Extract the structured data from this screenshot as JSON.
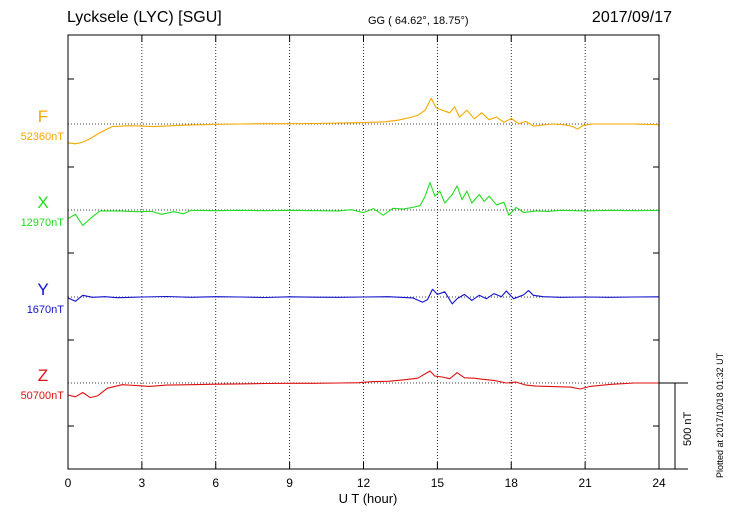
{
  "header": {
    "station": "Lycksele (LYC)  [SGU]",
    "coords": "GG ( 64.62°,  18.75°)",
    "date": "2017/09/17"
  },
  "footer": {
    "plotted": "Plotted at 2017/10/18 01:32 UT"
  },
  "colors": {
    "F": "#f5a800",
    "X": "#22dd22",
    "Y": "#1111cc",
    "Z": "#dd1111"
  },
  "chart_data": {
    "type": "line",
    "xlabel": "U T (hour)",
    "xlim": [
      0,
      24
    ],
    "xticks": [
      0,
      3,
      6,
      9,
      12,
      15,
      18,
      21,
      24
    ],
    "scale_bar": "500 nT",
    "grid": true,
    "series": [
      {
        "name": "F",
        "baseline_label": "52360nT",
        "baseline": 52360,
        "points": [
          [
            0,
            52250
          ],
          [
            0.3,
            52245
          ],
          [
            0.6,
            52255
          ],
          [
            0.9,
            52275
          ],
          [
            1.3,
            52310
          ],
          [
            1.8,
            52345
          ],
          [
            2.5,
            52350
          ],
          [
            3.5,
            52345
          ],
          [
            4.5,
            52352
          ],
          [
            5,
            52355
          ],
          [
            6,
            52358
          ],
          [
            7,
            52360
          ],
          [
            8,
            52362
          ],
          [
            9,
            52362
          ],
          [
            10,
            52363
          ],
          [
            11,
            52365
          ],
          [
            12,
            52368
          ],
          [
            12.8,
            52372
          ],
          [
            13.4,
            52382
          ],
          [
            13.9,
            52398
          ],
          [
            14.2,
            52410
          ],
          [
            14.5,
            52440
          ],
          [
            14.75,
            52510
          ],
          [
            14.95,
            52455
          ],
          [
            15.2,
            52440
          ],
          [
            15.5,
            52425
          ],
          [
            15.7,
            52460
          ],
          [
            15.9,
            52400
          ],
          [
            16.2,
            52440
          ],
          [
            16.5,
            52390
          ],
          [
            16.8,
            52425
          ],
          [
            17.1,
            52385
          ],
          [
            17.4,
            52400
          ],
          [
            17.7,
            52370
          ],
          [
            18,
            52392
          ],
          [
            18.3,
            52362
          ],
          [
            18.6,
            52375
          ],
          [
            18.9,
            52348
          ],
          [
            19.3,
            52354
          ],
          [
            19.7,
            52360
          ],
          [
            20.2,
            52355
          ],
          [
            20.5,
            52345
          ],
          [
            20.7,
            52330
          ],
          [
            20.9,
            52352
          ],
          [
            21.3,
            52360
          ],
          [
            22,
            52360
          ],
          [
            23,
            52360
          ],
          [
            24,
            52356
          ]
        ]
      },
      {
        "name": "X",
        "baseline_label": "12970nT",
        "baseline": 12970,
        "points": [
          [
            0,
            12920
          ],
          [
            0.3,
            12945
          ],
          [
            0.6,
            12880
          ],
          [
            0.9,
            12920
          ],
          [
            1.3,
            12965
          ],
          [
            2,
            12965
          ],
          [
            2.8,
            12960
          ],
          [
            3.4,
            12962
          ],
          [
            3.8,
            12945
          ],
          [
            4.3,
            12960
          ],
          [
            4.7,
            12948
          ],
          [
            5,
            12968
          ],
          [
            6,
            12966
          ],
          [
            7,
            12968
          ],
          [
            8,
            12966
          ],
          [
            9,
            12968
          ],
          [
            10,
            12966
          ],
          [
            11,
            12965
          ],
          [
            11.5,
            12972
          ],
          [
            12,
            12955
          ],
          [
            12.4,
            12978
          ],
          [
            12.8,
            12940
          ],
          [
            13.2,
            12980
          ],
          [
            13.6,
            12975
          ],
          [
            14,
            12985
          ],
          [
            14.3,
            12995
          ],
          [
            14.5,
            13050
          ],
          [
            14.7,
            13130
          ],
          [
            14.9,
            13050
          ],
          [
            15.1,
            13080
          ],
          [
            15.3,
            13010
          ],
          [
            15.6,
            13060
          ],
          [
            15.8,
            13110
          ],
          [
            16,
            13030
          ],
          [
            16.2,
            13080
          ],
          [
            16.4,
            13010
          ],
          [
            16.7,
            13060
          ],
          [
            16.9,
            13020
          ],
          [
            17.1,
            13050
          ],
          [
            17.4,
            13000
          ],
          [
            17.7,
            13015
          ],
          [
            17.9,
            12940
          ],
          [
            18.2,
            12985
          ],
          [
            18.5,
            12955
          ],
          [
            19,
            12965
          ],
          [
            19.5,
            12962
          ],
          [
            20,
            12968
          ],
          [
            21,
            12965
          ],
          [
            22,
            12968
          ],
          [
            23,
            12966
          ],
          [
            24,
            12968
          ]
        ]
      },
      {
        "name": "Y",
        "baseline_label": "1670nT",
        "baseline": 1670,
        "points": [
          [
            0,
            1665
          ],
          [
            0.3,
            1645
          ],
          [
            0.6,
            1680
          ],
          [
            1,
            1668
          ],
          [
            1.5,
            1672
          ],
          [
            2,
            1666
          ],
          [
            3,
            1670
          ],
          [
            4,
            1673
          ],
          [
            5,
            1668
          ],
          [
            6,
            1672
          ],
          [
            7,
            1670
          ],
          [
            8,
            1667
          ],
          [
            9,
            1671
          ],
          [
            10,
            1669
          ],
          [
            11,
            1668
          ],
          [
            12,
            1670
          ],
          [
            13,
            1672
          ],
          [
            14,
            1665
          ],
          [
            14.4,
            1640
          ],
          [
            14.6,
            1655
          ],
          [
            14.8,
            1715
          ],
          [
            15,
            1685
          ],
          [
            15.3,
            1700
          ],
          [
            15.6,
            1630
          ],
          [
            15.8,
            1660
          ],
          [
            16.1,
            1685
          ],
          [
            16.4,
            1650
          ],
          [
            16.7,
            1680
          ],
          [
            17,
            1660
          ],
          [
            17.3,
            1690
          ],
          [
            17.6,
            1672
          ],
          [
            17.8,
            1705
          ],
          [
            18.1,
            1660
          ],
          [
            18.5,
            1682
          ],
          [
            18.7,
            1708
          ],
          [
            18.9,
            1680
          ],
          [
            19.3,
            1672
          ],
          [
            20,
            1668
          ],
          [
            21,
            1670
          ],
          [
            22,
            1668
          ],
          [
            23,
            1670
          ],
          [
            24,
            1671
          ]
        ]
      },
      {
        "name": "Z",
        "baseline_label": "50700nT",
        "baseline": 50700,
        "points": [
          [
            0,
            50630
          ],
          [
            0.3,
            50620
          ],
          [
            0.6,
            50645
          ],
          [
            0.9,
            50615
          ],
          [
            1.2,
            50625
          ],
          [
            1.6,
            50670
          ],
          [
            2.2,
            50690
          ],
          [
            2.8,
            50685
          ],
          [
            3.3,
            50680
          ],
          [
            4,
            50688
          ],
          [
            5,
            50690
          ],
          [
            6,
            50693
          ],
          [
            7,
            50695
          ],
          [
            8,
            50697
          ],
          [
            9,
            50698
          ],
          [
            10,
            50698
          ],
          [
            11,
            50700
          ],
          [
            11.8,
            50702
          ],
          [
            12.4,
            50708
          ],
          [
            13,
            50710
          ],
          [
            13.6,
            50718
          ],
          [
            14.2,
            50728
          ],
          [
            14.7,
            50770
          ],
          [
            14.9,
            50740
          ],
          [
            15.2,
            50735
          ],
          [
            15.5,
            50725
          ],
          [
            15.8,
            50760
          ],
          [
            16.1,
            50730
          ],
          [
            16.5,
            50728
          ],
          [
            16.8,
            50722
          ],
          [
            17.3,
            50715
          ],
          [
            17.8,
            50700
          ],
          [
            18.2,
            50705
          ],
          [
            18.6,
            50688
          ],
          [
            19,
            50682
          ],
          [
            19.5,
            50680
          ],
          [
            20,
            50678
          ],
          [
            20.4,
            50676
          ],
          [
            20.8,
            50665
          ],
          [
            21.2,
            50680
          ],
          [
            22,
            50692
          ],
          [
            23,
            50700
          ],
          [
            24,
            50700
          ]
        ]
      }
    ]
  }
}
